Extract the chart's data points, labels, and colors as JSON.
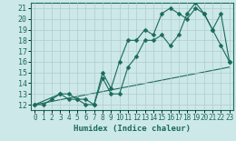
{
  "title": "",
  "xlabel": "Humidex (Indice chaleur)",
  "xlim": [
    -0.5,
    23.5
  ],
  "ylim": [
    11.5,
    21.5
  ],
  "xticks": [
    0,
    1,
    2,
    3,
    4,
    5,
    6,
    7,
    8,
    9,
    10,
    11,
    12,
    13,
    14,
    15,
    16,
    17,
    18,
    19,
    20,
    21,
    22,
    23
  ],
  "yticks": [
    12,
    13,
    14,
    15,
    16,
    17,
    18,
    19,
    20,
    21
  ],
  "bg_color": "#cde8e8",
  "grid_color": "#b0cccc",
  "line_color": "#1a6b5a",
  "line1_x": [
    0,
    1,
    2,
    3,
    4,
    5,
    6,
    7,
    8,
    9,
    10,
    11,
    12,
    13,
    14,
    15,
    16,
    17,
    18,
    19,
    20,
    21,
    22,
    23
  ],
  "line1_y": [
    12,
    12,
    12.5,
    13,
    12.5,
    12.5,
    12,
    12,
    14.5,
    13,
    13,
    15.5,
    16.5,
    18,
    18,
    18.5,
    17.5,
    18.5,
    20.5,
    21.5,
    20.5,
    19,
    17.5,
    16
  ],
  "line2_x": [
    0,
    3,
    4,
    5,
    6,
    7,
    8,
    9,
    10,
    11,
    12,
    13,
    14,
    15,
    16,
    17,
    18,
    19,
    20,
    21,
    22,
    23
  ],
  "line2_y": [
    12,
    13,
    13,
    12.5,
    12.5,
    12,
    15,
    13.5,
    16,
    18,
    18,
    19,
    18.5,
    20.5,
    21,
    20.5,
    20,
    21,
    20.5,
    19,
    20.5,
    16
  ],
  "line3_x": [
    0,
    23
  ],
  "line3_y": [
    12,
    15.5
  ]
}
